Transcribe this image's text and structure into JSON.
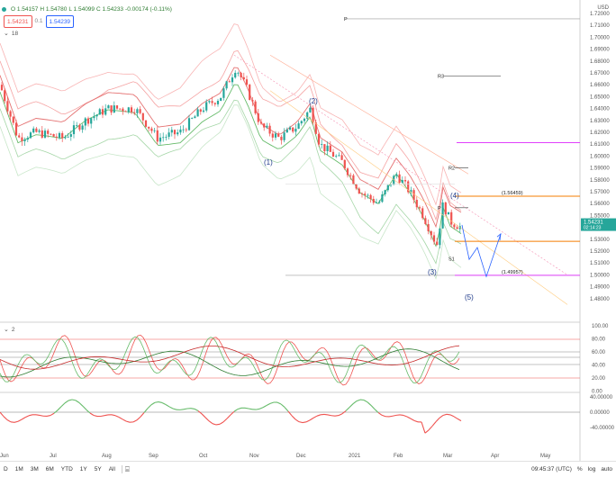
{
  "legend": {
    "open": "O 1.54157",
    "high": "H 1.54780",
    "low": "L 1.54099",
    "close": "C 1.54233",
    "change": "-0.00174 (-0.11%)"
  },
  "pricebox": {
    "sell": "1.54231",
    "mid": "0.1",
    "buy": "1.54239"
  },
  "indicator1": {
    "label": "18"
  },
  "indicator2": {
    "label": "2"
  },
  "currency": "USD",
  "price_axis": [
    "1.72000",
    "1.71000",
    "1.70000",
    "1.69000",
    "1.68000",
    "1.67000",
    "1.66000",
    "1.65000",
    "1.64000",
    "1.63000",
    "1.62000",
    "1.61000",
    "1.60000",
    "1.59000",
    "1.58000",
    "1.57000",
    "1.56000",
    "1.55000",
    "1.54000",
    "1.53000",
    "1.52000",
    "1.51000",
    "1.50000",
    "1.49000",
    "1.48000"
  ],
  "current_price": {
    "value": "1.54231",
    "countdown": "02:14:23"
  },
  "osc1_axis": [
    "100.00",
    "80.00",
    "60.00",
    "40.00",
    "20.00",
    "0.00"
  ],
  "osc2_axis": [
    "40.00000",
    "0.00000",
    "-40.00000"
  ],
  "time_axis": [
    "Jun",
    "Jul",
    "Aug",
    "Sep",
    "Oct",
    "Nov",
    "Dec",
    "2021",
    "Feb",
    "Mar",
    "Apr",
    "May"
  ],
  "annotations": {
    "wave1": "(1)",
    "wave2": "(2)",
    "wave3": "(3)",
    "wave4": "(4)",
    "wave5": "(5)",
    "level_high": "(1.56459)",
    "level_low": "(1.49957)",
    "r3": "R3",
    "r2": "R2",
    "p": "P",
    "s1": "S1",
    "pivot_top": "P"
  },
  "colors": {
    "up": "#26a69a",
    "down": "#ef5350",
    "accent": "#2962ff",
    "magenta": "#e040fb",
    "orange": "#f57c00"
  },
  "bottombar": {
    "timeframes": [
      "D",
      "1M",
      "3M",
      "6M",
      "YTD",
      "1Y",
      "5Y",
      "All"
    ],
    "time": "09:45:37 (UTC)",
    "pct": "%",
    "log": "log",
    "auto": "auto"
  }
}
